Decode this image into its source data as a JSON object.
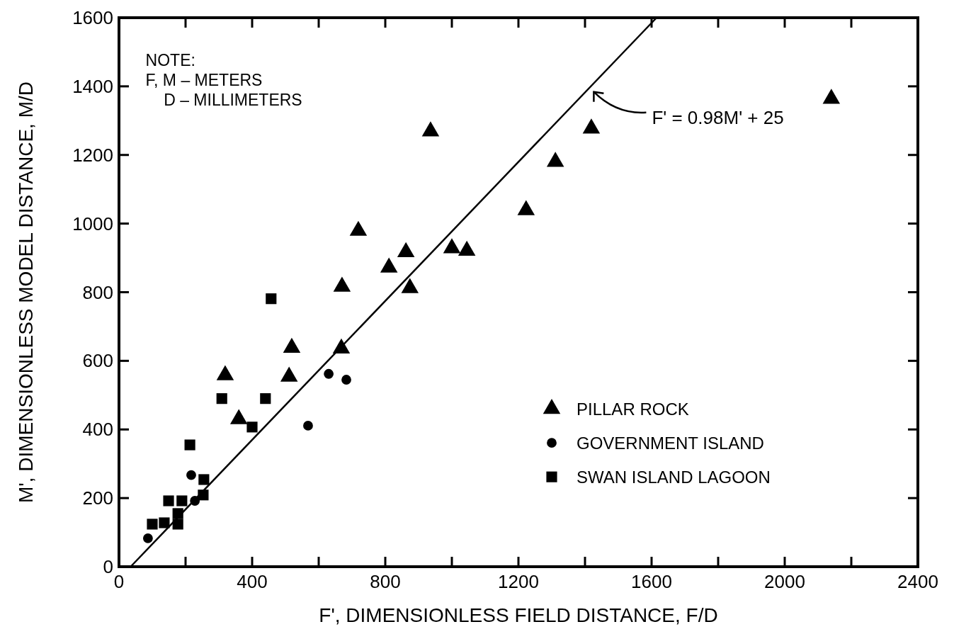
{
  "chart_data": {
    "type": "scatter",
    "xlabel": "F', DIMENSIONLESS FIELD DISTANCE, F/D",
    "ylabel": "M', DIMENSIONLESS MODEL DISTANCE, M/D",
    "xlim": [
      0,
      2400
    ],
    "ylim": [
      0,
      1600
    ],
    "xticks": [
      0,
      {
        "value": 200,
        "label": null
      },
      400,
      {
        "value": 600,
        "label": null
      },
      800,
      {
        "value": 1000,
        "label": null
      },
      1200,
      {
        "value": 1400,
        "label": null
      },
      1600,
      {
        "value": 1800,
        "label": null
      },
      2000,
      {
        "value": 2200,
        "label": null
      },
      2400
    ],
    "yticks": [
      0,
      200,
      400,
      600,
      800,
      1000,
      1200,
      1400,
      1600
    ],
    "grid": false,
    "legend": "bottom right",
    "series": [
      {
        "name": "PILLAR ROCK",
        "color": "#000000",
        "marker": "triangle",
        "x": [
          319,
          360,
          519,
          511,
          668,
          670,
          719,
          862,
          811,
          874,
          1000,
          1045,
          936,
          1419,
          1311,
          1223,
          2140
        ],
        "values": [
          558,
          430,
          638,
          554,
          636,
          816,
          979,
          917,
          872,
          812,
          928,
          921,
          1269,
          1277,
          1180,
          1039,
          1364
        ]
      },
      {
        "name": "GOVERNMENT ISLAND",
        "color": "#000000",
        "marker": "circle",
        "x": [
          87,
          217,
          228,
          568,
          630,
          683
        ],
        "values": [
          83,
          267,
          192,
          411,
          562,
          545
        ]
      },
      {
        "name": "SWAN ISLAND LAGOON",
        "color": "#000000",
        "marker": "square",
        "x": [
          457,
          309,
          440,
          400,
          213,
          255,
          253,
          149,
          189,
          177,
          177,
          100,
          136
        ],
        "values": [
          781,
          490,
          490,
          407,
          355,
          254,
          209,
          192,
          192,
          155,
          124,
          124,
          128
        ]
      },
      {
        "type": "line",
        "color": "#000000",
        "marker": "none",
        "x": [
          35,
          1615
        ],
        "values": [
          0,
          1600
        ]
      }
    ],
    "annotations": [
      "NOTE:\nF, M – METERS\n    D – MILLIMETERS",
      {
        "text": "F' = 0.98M' + 25",
        "x": 1420,
        "y": 1390
      }
    ]
  }
}
